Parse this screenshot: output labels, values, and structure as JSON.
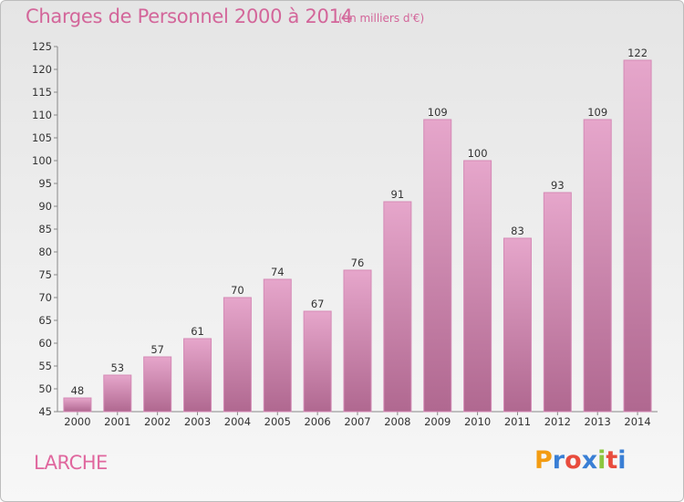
{
  "header": {
    "title": "Charges de Personnel 2000 à 2014",
    "subtitle": "(en milliers d'€)"
  },
  "footer": {
    "commune": "LARCHE",
    "logo": "Proxiti",
    "logo_colors": [
      "#f39c12",
      "#3a7fd5",
      "#e84c3d",
      "#3a7fd5",
      "#8cc63f",
      "#e84c3d",
      "#3a7fd5"
    ]
  },
  "colors": {
    "bar_top": "#e6a6cb",
    "bar_bottom": "#b06890",
    "accent": "#d3669a"
  },
  "chart_data": {
    "type": "bar",
    "title": "Charges de Personnel 2000 à 2014",
    "subtitle": "(en milliers d'€)",
    "categories": [
      "2000",
      "2001",
      "2002",
      "2003",
      "2004",
      "2005",
      "2006",
      "2007",
      "2008",
      "2009",
      "2010",
      "2011",
      "2012",
      "2013",
      "2014"
    ],
    "values": [
      48,
      53,
      57,
      61,
      70,
      74,
      67,
      76,
      91,
      109,
      100,
      83,
      93,
      109,
      122
    ],
    "ylim": [
      45,
      125
    ],
    "yticks": [
      45,
      50,
      55,
      60,
      65,
      70,
      75,
      80,
      85,
      90,
      95,
      100,
      105,
      110,
      115,
      120,
      125
    ],
    "grid": false,
    "legend": "none"
  }
}
